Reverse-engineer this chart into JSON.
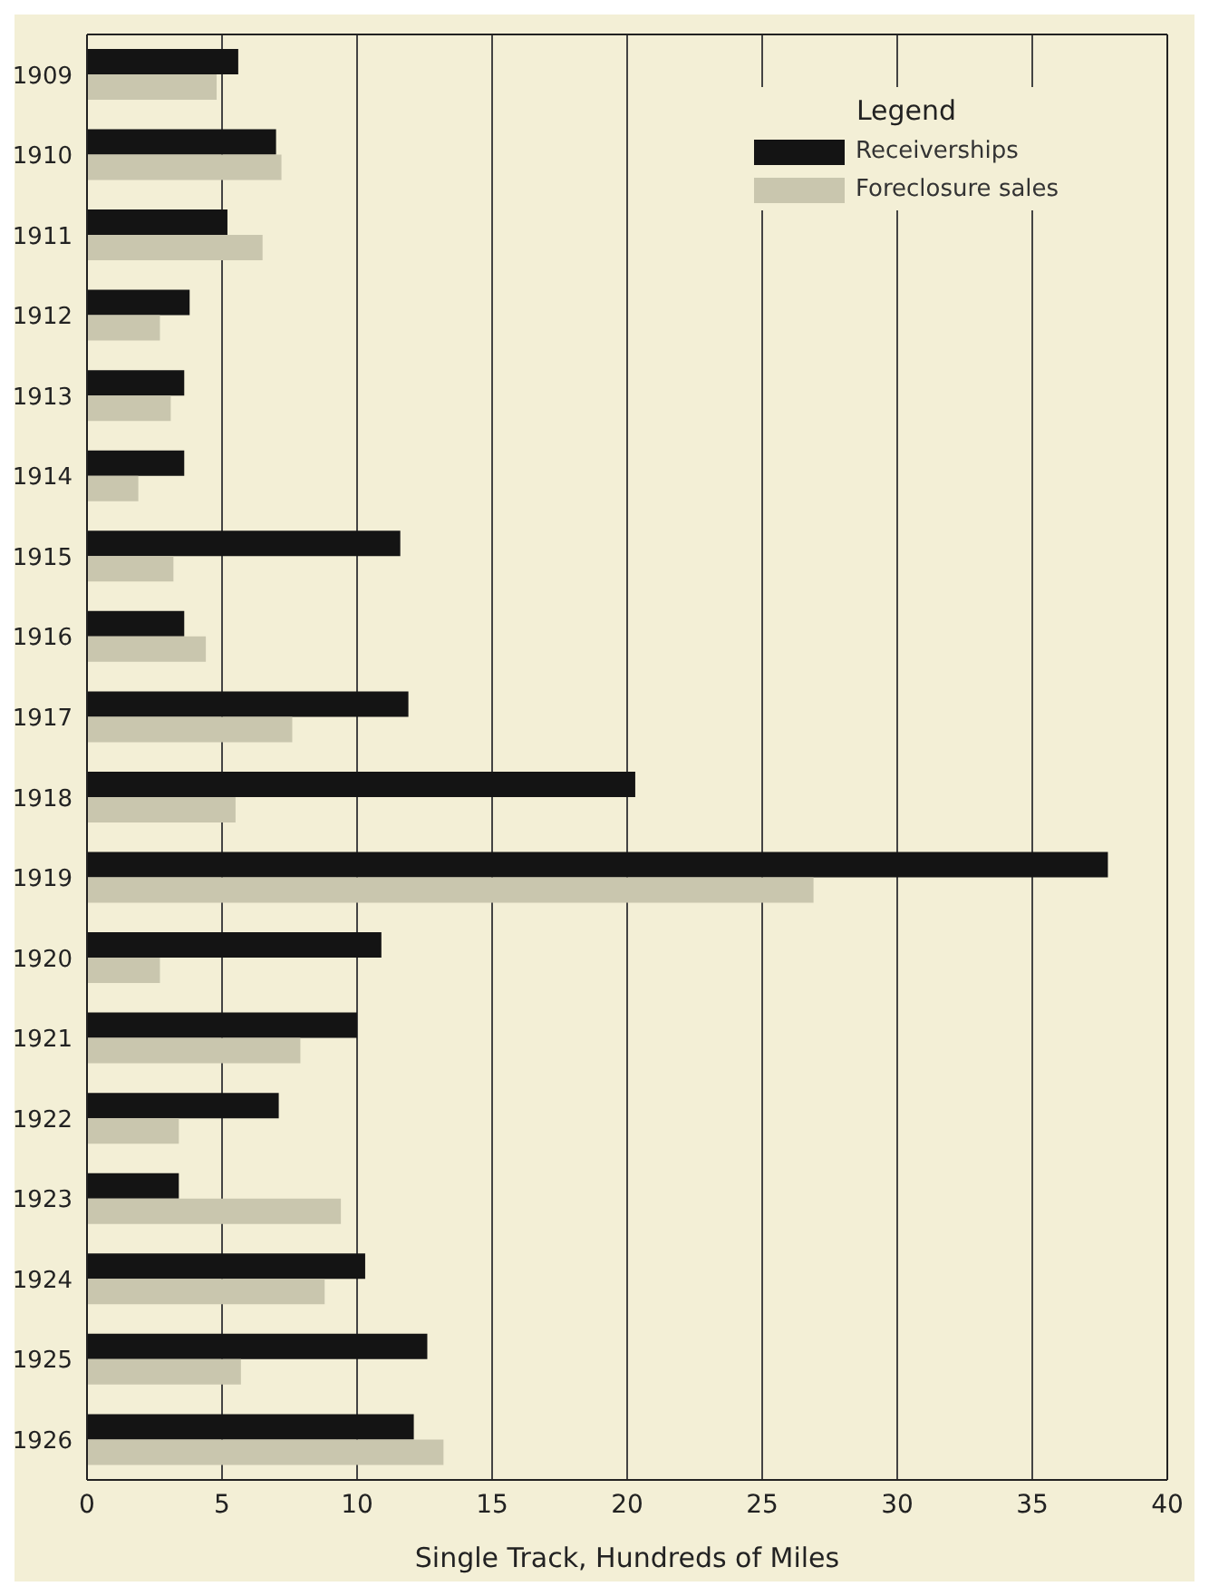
{
  "chart_data": {
    "type": "bar",
    "orientation": "horizontal",
    "categories": [
      "1909",
      "1910",
      "1911",
      "1912",
      "1913",
      "1914",
      "1915",
      "1916",
      "1917",
      "1918",
      "1919",
      "1920",
      "1921",
      "1922",
      "1923",
      "1924",
      "1925",
      "1926"
    ],
    "series": [
      {
        "name": "Receiverships",
        "color": "#141414",
        "values": [
          5.6,
          7.0,
          5.2,
          3.8,
          3.6,
          3.6,
          11.6,
          3.6,
          11.9,
          20.3,
          37.8,
          10.9,
          10.0,
          7.1,
          3.4,
          10.3,
          12.6,
          12.1
        ]
      },
      {
        "name": "Foreclosure sales",
        "color": "#c9c6ae",
        "values": [
          4.8,
          7.2,
          6.5,
          2.7,
          3.1,
          1.9,
          3.2,
          4.4,
          7.6,
          5.5,
          26.9,
          2.7,
          7.9,
          3.4,
          9.4,
          8.8,
          5.7,
          13.2
        ]
      }
    ],
    "xlim": [
      0,
      40
    ],
    "xticks": [
      0,
      5,
      10,
      15,
      20,
      25,
      30,
      35,
      40
    ],
    "xlabel": "Single Track, Hundreds of Miles",
    "grid": "x",
    "legend": "top right",
    "legend_title": "Legend"
  }
}
